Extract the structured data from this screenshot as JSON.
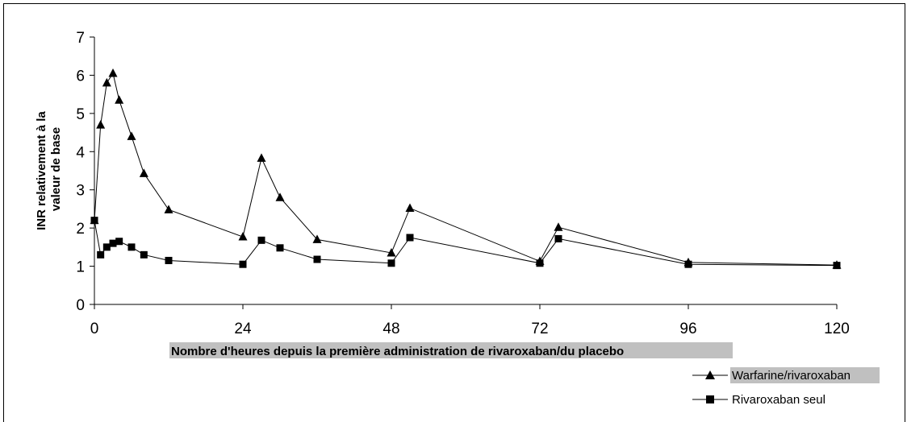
{
  "chart_data": {
    "type": "line",
    "xlabel": "Nombre d'heures depuis la première administration de rivaroxaban/du placebo",
    "ylabel_lines": [
      "INR relativement à la",
      "valeur de base"
    ],
    "xlim": [
      0,
      120
    ],
    "ylim": [
      0,
      7
    ],
    "x_ticks": [
      0,
      24,
      48,
      72,
      96,
      120
    ],
    "y_ticks": [
      0,
      1,
      2,
      3,
      4,
      5,
      6,
      7
    ],
    "grid": false,
    "legend_position": "bottom-right",
    "series": [
      {
        "name": "Warfarine/rivaroxaban",
        "marker": "triangle",
        "color": "#000000",
        "x": [
          0,
          1,
          2,
          3,
          4,
          6,
          8,
          12,
          24,
          27,
          30,
          36,
          48,
          51,
          72,
          75,
          96,
          120
        ],
        "y": [
          2.2,
          4.7,
          5.8,
          6.05,
          5.35,
          4.4,
          3.43,
          2.48,
          1.77,
          3.83,
          2.8,
          1.7,
          1.35,
          2.52,
          1.13,
          2.02,
          1.1,
          1.03
        ]
      },
      {
        "name": "Rivaroxaban seul",
        "marker": "square",
        "color": "#000000",
        "x": [
          0,
          1,
          2,
          3,
          4,
          6,
          8,
          12,
          24,
          27,
          30,
          36,
          48,
          51,
          72,
          75,
          96,
          120
        ],
        "y": [
          2.2,
          1.3,
          1.5,
          1.6,
          1.65,
          1.5,
          1.3,
          1.15,
          1.05,
          1.68,
          1.48,
          1.18,
          1.08,
          1.75,
          1.08,
          1.72,
          1.05,
          1.02
        ]
      }
    ]
  }
}
